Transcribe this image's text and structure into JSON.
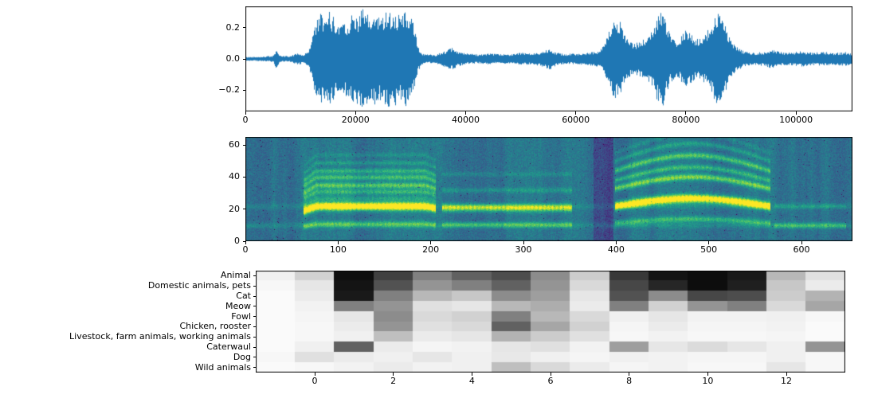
{
  "figure": {
    "background": "#ffffff"
  },
  "chart_data": [
    {
      "id": "waveform",
      "type": "line",
      "title": "",
      "xlabel": "",
      "ylabel": "",
      "color": "#1f77b4",
      "xlim": [
        0,
        110250
      ],
      "ylim": [
        -0.337,
        0.337
      ],
      "xticks": [
        {
          "value": 0,
          "label": "0"
        },
        {
          "value": 20000,
          "label": "20000"
        },
        {
          "value": 40000,
          "label": "40000"
        },
        {
          "value": 60000,
          "label": "60000"
        },
        {
          "value": 80000,
          "label": "80000"
        },
        {
          "value": 100000,
          "label": "100000"
        }
      ],
      "yticks": [
        {
          "value": 0.2,
          "label": "0.2"
        },
        {
          "value": 0.0,
          "label": "0.0"
        },
        {
          "value": -0.2,
          "label": "−0.2"
        }
      ],
      "envelope": [
        [
          0,
          0.012
        ],
        [
          3000,
          0.015
        ],
        [
          5000,
          0.02
        ],
        [
          5600,
          0.065
        ],
        [
          6200,
          0.02
        ],
        [
          8000,
          0.018
        ],
        [
          9500,
          0.04
        ],
        [
          10500,
          0.025
        ],
        [
          11500,
          0.06
        ],
        [
          12200,
          0.18
        ],
        [
          13000,
          0.26
        ],
        [
          13800,
          0.3
        ],
        [
          14500,
          0.24
        ],
        [
          15200,
          0.31
        ],
        [
          16000,
          0.27
        ],
        [
          16800,
          0.22
        ],
        [
          17500,
          0.28
        ],
        [
          18300,
          0.24
        ],
        [
          19000,
          0.27
        ],
        [
          19800,
          0.31
        ],
        [
          20500,
          0.28
        ],
        [
          21200,
          0.33
        ],
        [
          22000,
          0.29
        ],
        [
          22800,
          0.26
        ],
        [
          23500,
          0.3
        ],
        [
          24300,
          0.27
        ],
        [
          25000,
          0.3
        ],
        [
          25800,
          0.33
        ],
        [
          26500,
          0.29
        ],
        [
          27300,
          0.31
        ],
        [
          28000,
          0.27
        ],
        [
          28800,
          0.32
        ],
        [
          29500,
          0.29
        ],
        [
          30200,
          0.26
        ],
        [
          30800,
          0.18
        ],
        [
          31300,
          0.08
        ],
        [
          32000,
          0.035
        ],
        [
          33000,
          0.03
        ],
        [
          34500,
          0.028
        ],
        [
          36000,
          0.05
        ],
        [
          37500,
          0.07
        ],
        [
          38500,
          0.05
        ],
        [
          40000,
          0.035
        ],
        [
          42000,
          0.03
        ],
        [
          44000,
          0.035
        ],
        [
          46000,
          0.03
        ],
        [
          48000,
          0.032
        ],
        [
          50000,
          0.04
        ],
        [
          52000,
          0.035
        ],
        [
          54000,
          0.05
        ],
        [
          55200,
          0.07
        ],
        [
          56500,
          0.04
        ],
        [
          58000,
          0.032
        ],
        [
          60000,
          0.035
        ],
        [
          62000,
          0.04
        ],
        [
          64000,
          0.05
        ],
        [
          65000,
          0.09
        ],
        [
          65800,
          0.16
        ],
        [
          66500,
          0.22
        ],
        [
          67200,
          0.27
        ],
        [
          68000,
          0.24
        ],
        [
          68800,
          0.16
        ],
        [
          69500,
          0.12
        ],
        [
          70500,
          0.1
        ],
        [
          71500,
          0.11
        ],
        [
          72500,
          0.13
        ],
        [
          73500,
          0.17
        ],
        [
          74300,
          0.22
        ],
        [
          75000,
          0.3
        ],
        [
          75600,
          0.33
        ],
        [
          76300,
          0.24
        ],
        [
          77000,
          0.16
        ],
        [
          78000,
          0.12
        ],
        [
          79000,
          0.14
        ],
        [
          79800,
          0.19
        ],
        [
          80500,
          0.17
        ],
        [
          81500,
          0.14
        ],
        [
          82500,
          0.13
        ],
        [
          83500,
          0.16
        ],
        [
          84300,
          0.21
        ],
        [
          85000,
          0.26
        ],
        [
          85800,
          0.31
        ],
        [
          86400,
          0.33
        ],
        [
          87000,
          0.24
        ],
        [
          87800,
          0.15
        ],
        [
          88500,
          0.1
        ],
        [
          89500,
          0.07
        ],
        [
          90500,
          0.05
        ],
        [
          92000,
          0.04
        ],
        [
          94000,
          0.045
        ],
        [
          95500,
          0.06
        ],
        [
          97000,
          0.045
        ],
        [
          99000,
          0.04
        ],
        [
          101000,
          0.05
        ],
        [
          103000,
          0.04
        ],
        [
          105000,
          0.045
        ],
        [
          107000,
          0.04
        ],
        [
          109000,
          0.045
        ],
        [
          110250,
          0.03
        ]
      ]
    },
    {
      "id": "spectrogram",
      "type": "heatmap",
      "title": "",
      "colormap": "viridis",
      "xlim": [
        0,
        655
      ],
      "ylim": [
        0,
        65
      ],
      "xticks": [
        {
          "value": 0,
          "label": "0"
        },
        {
          "value": 100,
          "label": "100"
        },
        {
          "value": 200,
          "label": "200"
        },
        {
          "value": 300,
          "label": "300"
        },
        {
          "value": 400,
          "label": "400"
        },
        {
          "value": 500,
          "label": "500"
        },
        {
          "value": 600,
          "label": "600"
        }
      ],
      "yticks": [
        {
          "value": 0,
          "label": "0"
        },
        {
          "value": 20,
          "label": "20"
        },
        {
          "value": 40,
          "label": "40"
        },
        {
          "value": 60,
          "label": "60"
        }
      ],
      "baseline_lines": [
        [
          10,
          0.1
        ],
        [
          22,
          0.08
        ]
      ],
      "patches": [
        {
          "x0": 375,
          "x1": 397,
          "amp": -0.16
        }
      ],
      "regions": [
        {
          "x0": 62,
          "x1": 205,
          "onset": true,
          "lines": [
            [
              22,
              0.85,
              1.8
            ],
            [
              11,
              0.3,
              1.3
            ],
            [
              27,
              0.18,
              1.2
            ],
            [
              31,
              0.28,
              1.2
            ],
            [
              35,
              0.38,
              1.3
            ],
            [
              40,
              0.32,
              1.2
            ],
            [
              44,
              0.26,
              1.1
            ],
            [
              49,
              0.16,
              1.0
            ],
            [
              54,
              0.1,
              1.0
            ]
          ]
        },
        {
          "x0": 212,
          "x1": 352,
          "onset": false,
          "lines": [
            [
              21,
              0.55,
              1.6
            ],
            [
              10.5,
              0.28,
              1.2
            ],
            [
              32,
              0.16,
              1.1
            ],
            [
              42,
              0.1,
              1.0
            ]
          ]
        },
        {
          "x0": 398,
          "x1": 566,
          "arc": 0.22,
          "lines": [
            [
              22,
              0.85,
              1.8
            ],
            [
              11.5,
              0.3,
              1.3
            ],
            [
              33,
              0.45,
              1.4
            ],
            [
              38,
              0.3,
              1.2
            ],
            [
              44,
              0.36,
              1.3
            ],
            [
              50,
              0.18,
              1.1
            ],
            [
              55,
              0.1,
              1.0
            ]
          ]
        },
        {
          "x0": 570,
          "x1": 648,
          "lines": [
            [
              10,
              0.25,
              1.2
            ],
            [
              22,
              0.12,
              1.1
            ]
          ]
        }
      ]
    },
    {
      "id": "framewise-output",
      "type": "heatmap",
      "title": "",
      "colormap": "greys",
      "xlim": [
        -1.5,
        13.5
      ],
      "columns_x": [
        -1,
        0,
        1,
        2,
        3,
        4,
        5,
        6,
        7,
        8,
        9,
        10,
        11,
        12,
        13
      ],
      "xticks": [
        {
          "value": 0,
          "label": "0"
        },
        {
          "value": 2,
          "label": "2"
        },
        {
          "value": 4,
          "label": "4"
        },
        {
          "value": 6,
          "label": "6"
        },
        {
          "value": 8,
          "label": "8"
        },
        {
          "value": 10,
          "label": "10"
        },
        {
          "value": 12,
          "label": "12"
        }
      ],
      "categories": [
        "Animal",
        "Domestic animals, pets",
        "Cat",
        "Meow",
        "Fowl",
        "Chicken, rooster",
        "Livestock, farm animals, working animals",
        "Caterwaul",
        "Dog",
        "Wild animals"
      ],
      "values": [
        [
          0.06,
          0.18,
          0.95,
          0.75,
          0.5,
          0.62,
          0.7,
          0.45,
          0.2,
          0.78,
          0.92,
          0.95,
          0.9,
          0.28,
          0.12
        ],
        [
          0.03,
          0.1,
          0.92,
          0.68,
          0.42,
          0.5,
          0.62,
          0.42,
          0.15,
          0.72,
          0.85,
          0.95,
          0.88,
          0.22,
          0.08
        ],
        [
          0.02,
          0.08,
          0.9,
          0.5,
          0.28,
          0.22,
          0.45,
          0.38,
          0.1,
          0.68,
          0.45,
          0.72,
          0.7,
          0.2,
          0.3
        ],
        [
          0.02,
          0.05,
          0.5,
          0.42,
          0.12,
          0.1,
          0.28,
          0.32,
          0.08,
          0.5,
          0.18,
          0.42,
          0.5,
          0.15,
          0.35
        ],
        [
          0.02,
          0.04,
          0.1,
          0.45,
          0.15,
          0.18,
          0.5,
          0.28,
          0.15,
          0.06,
          0.1,
          0.05,
          0.05,
          0.06,
          0.03
        ],
        [
          0.02,
          0.03,
          0.08,
          0.42,
          0.12,
          0.15,
          0.62,
          0.35,
          0.18,
          0.04,
          0.08,
          0.04,
          0.04,
          0.05,
          0.02
        ],
        [
          0.02,
          0.03,
          0.06,
          0.25,
          0.08,
          0.1,
          0.3,
          0.2,
          0.12,
          0.03,
          0.05,
          0.03,
          0.03,
          0.04,
          0.02
        ],
        [
          0.02,
          0.06,
          0.62,
          0.08,
          0.04,
          0.05,
          0.1,
          0.12,
          0.05,
          0.38,
          0.1,
          0.14,
          0.1,
          0.06,
          0.42
        ],
        [
          0.03,
          0.12,
          0.08,
          0.06,
          0.1,
          0.06,
          0.09,
          0.06,
          0.04,
          0.06,
          0.05,
          0.04,
          0.04,
          0.06,
          0.03
        ],
        [
          0.02,
          0.03,
          0.05,
          0.08,
          0.05,
          0.06,
          0.25,
          0.15,
          0.08,
          0.04,
          0.05,
          0.03,
          0.03,
          0.1,
          0.03
        ]
      ]
    }
  ]
}
